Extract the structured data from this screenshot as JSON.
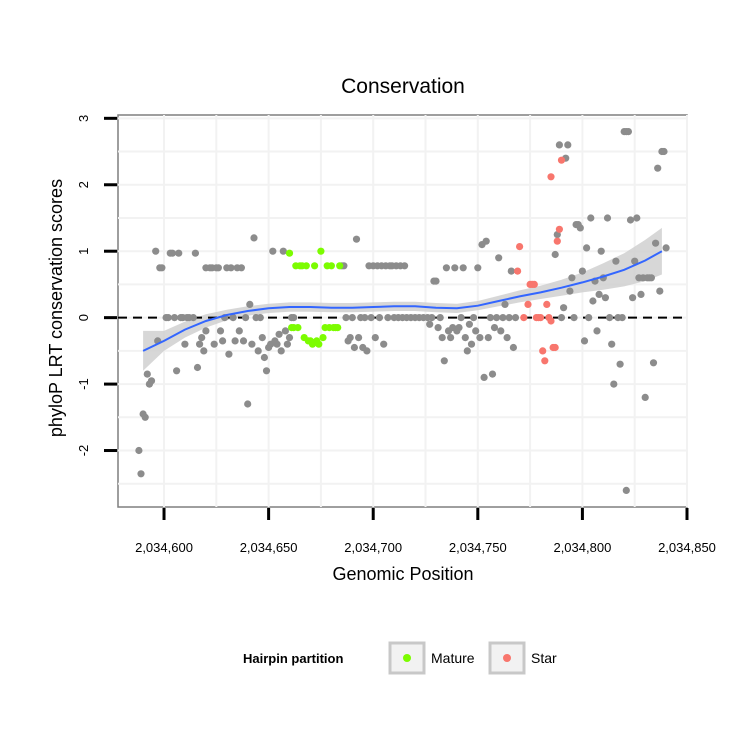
{
  "chart_data": {
    "type": "scatter",
    "title": "Conservation",
    "xlabel": "Genomic Position",
    "ylabel": "phyloP LRT conservation scores",
    "xlim": [
      2034578,
      2034850
    ],
    "ylim": [
      -2.85,
      3.05
    ],
    "x_ticks": [
      2034600,
      2034650,
      2034700,
      2034750,
      2034800,
      2034850
    ],
    "x_tick_labels": [
      "2,034,600",
      "2,034,650",
      "2,034,700",
      "2,034,750",
      "2,034,800",
      "2,034,850"
    ],
    "y_ticks": [
      -2,
      -1,
      0,
      1,
      2,
      3
    ],
    "y_tick_labels": [
      "-2",
      "-1",
      "0",
      "1",
      "2",
      "3"
    ],
    "reference_line": {
      "y": 0,
      "style": "dashed"
    },
    "legend": {
      "title": "Hairpin partition",
      "placement": "bottom",
      "entries": [
        {
          "label": "Mature",
          "color": "#7cfc00"
        },
        {
          "label": "Star",
          "color": "#f8766d"
        }
      ]
    },
    "colors": {
      "other": "#8c8c8c",
      "mature": "#7cfc00",
      "star": "#f8766d",
      "smooth": "#3366ff",
      "band": "#d0d0d0"
    },
    "smooth": {
      "x": [
        2034590,
        2034600,
        2034610,
        2034620,
        2034630,
        2034640,
        2034650,
        2034660,
        2034670,
        2034680,
        2034690,
        2034700,
        2034710,
        2034720,
        2034730,
        2034740,
        2034750,
        2034760,
        2034770,
        2034780,
        2034790,
        2034800,
        2034810,
        2034820,
        2034830,
        2034838
      ],
      "y": [
        -0.5,
        -0.35,
        -0.18,
        -0.05,
        0.04,
        0.1,
        0.14,
        0.16,
        0.16,
        0.15,
        0.15,
        0.16,
        0.17,
        0.17,
        0.15,
        0.14,
        0.18,
        0.25,
        0.32,
        0.38,
        0.45,
        0.53,
        0.62,
        0.72,
        0.86,
        1.0
      ],
      "lower": [
        -0.8,
        -0.5,
        -0.3,
        -0.15,
        -0.04,
        0.03,
        0.07,
        0.09,
        0.09,
        0.08,
        0.08,
        0.09,
        0.1,
        0.1,
        0.08,
        0.07,
        0.11,
        0.17,
        0.23,
        0.28,
        0.33,
        0.38,
        0.42,
        0.47,
        0.55,
        0.65
      ],
      "upper": [
        -0.2,
        -0.2,
        -0.06,
        0.05,
        0.12,
        0.17,
        0.21,
        0.23,
        0.23,
        0.22,
        0.22,
        0.23,
        0.24,
        0.24,
        0.22,
        0.21,
        0.25,
        0.33,
        0.41,
        0.48,
        0.57,
        0.68,
        0.82,
        0.97,
        1.17,
        1.35
      ]
    },
    "series": [
      {
        "name": "Other",
        "points": [
          [
            2034588,
            -2.0
          ],
          [
            2034589,
            -2.35
          ],
          [
            2034590,
            -1.45
          ],
          [
            2034591,
            -1.5
          ],
          [
            2034592,
            -0.85
          ],
          [
            2034593,
            -1.0
          ],
          [
            2034594,
            -0.95
          ],
          [
            2034596,
            1.0
          ],
          [
            2034597,
            -0.35
          ],
          [
            2034598,
            0.75
          ],
          [
            2034599,
            0.75
          ],
          [
            2034601,
            0.0
          ],
          [
            2034602,
            0.0
          ],
          [
            2034603,
            0.97
          ],
          [
            2034604,
            0.97
          ],
          [
            2034605,
            0.0
          ],
          [
            2034606,
            -0.8
          ],
          [
            2034607,
            0.97
          ],
          [
            2034608,
            0.0
          ],
          [
            2034609,
            0.0
          ],
          [
            2034610,
            -0.4
          ],
          [
            2034611,
            0.0
          ],
          [
            2034612,
            0.0
          ],
          [
            2034614,
            0.0
          ],
          [
            2034615,
            0.97
          ],
          [
            2034616,
            -0.75
          ],
          [
            2034617,
            -0.4
          ],
          [
            2034618,
            -0.3
          ],
          [
            2034619,
            -0.5
          ],
          [
            2034620,
            0.75
          ],
          [
            2034620,
            -0.2
          ],
          [
            2034622,
            0.75
          ],
          [
            2034623,
            0.75
          ],
          [
            2034624,
            -0.4
          ],
          [
            2034625,
            0.75
          ],
          [
            2034626,
            0.75
          ],
          [
            2034627,
            -0.2
          ],
          [
            2034628,
            -0.35
          ],
          [
            2034629,
            0.0
          ],
          [
            2034630,
            0.75
          ],
          [
            2034631,
            -0.55
          ],
          [
            2034632,
            0.75
          ],
          [
            2034633,
            0.0
          ],
          [
            2034634,
            -0.35
          ],
          [
            2034635,
            0.75
          ],
          [
            2034636,
            -0.2
          ],
          [
            2034637,
            0.75
          ],
          [
            2034638,
            -0.35
          ],
          [
            2034639,
            0.0
          ],
          [
            2034640,
            -1.3
          ],
          [
            2034641,
            0.2
          ],
          [
            2034642,
            -0.4
          ],
          [
            2034643,
            1.2
          ],
          [
            2034644,
            0.0
          ],
          [
            2034645,
            -0.5
          ],
          [
            2034646,
            0.0
          ],
          [
            2034647,
            -0.3
          ],
          [
            2034648,
            -0.6
          ],
          [
            2034649,
            -0.8
          ],
          [
            2034650,
            -0.45
          ],
          [
            2034651,
            -0.4
          ],
          [
            2034652,
            1.0
          ],
          [
            2034653,
            -0.35
          ],
          [
            2034654,
            -0.4
          ],
          [
            2034655,
            -0.25
          ],
          [
            2034656,
            -0.5
          ],
          [
            2034657,
            1.0
          ],
          [
            2034658,
            -0.2
          ],
          [
            2034659,
            -0.4
          ],
          [
            2034660,
            -0.3
          ],
          [
            2034661,
            0.0
          ],
          [
            2034662,
            0.0
          ],
          [
            2034685,
            0.78
          ],
          [
            2034686,
            0.78
          ],
          [
            2034687,
            0.0
          ],
          [
            2034688,
            -0.35
          ],
          [
            2034689,
            -0.3
          ],
          [
            2034690,
            0.0
          ],
          [
            2034691,
            -0.45
          ],
          [
            2034692,
            1.18
          ],
          [
            2034693,
            -0.3
          ],
          [
            2034694,
            0.0
          ],
          [
            2034695,
            -0.45
          ],
          [
            2034696,
            0.0
          ],
          [
            2034697,
            -0.5
          ],
          [
            2034698,
            0.78
          ],
          [
            2034699,
            0.0
          ],
          [
            2034700,
            0.78
          ],
          [
            2034701,
            -0.3
          ],
          [
            2034702,
            0.78
          ],
          [
            2034703,
            0.0
          ],
          [
            2034704,
            0.78
          ],
          [
            2034705,
            -0.4
          ],
          [
            2034706,
            0.78
          ],
          [
            2034707,
            0.0
          ],
          [
            2034708,
            0.78
          ],
          [
            2034709,
            0.78
          ],
          [
            2034710,
            0.0
          ],
          [
            2034711,
            0.78
          ],
          [
            2034712,
            0.0
          ],
          [
            2034713,
            0.78
          ],
          [
            2034714,
            0.0
          ],
          [
            2034715,
            0.78
          ],
          [
            2034716,
            0.0
          ],
          [
            2034718,
            0.0
          ],
          [
            2034720,
            0.0
          ],
          [
            2034722,
            0.0
          ],
          [
            2034724,
            0.0
          ],
          [
            2034726,
            0.0
          ],
          [
            2034727,
            -0.1
          ],
          [
            2034728,
            0.0
          ],
          [
            2034729,
            0.55
          ],
          [
            2034730,
            0.55
          ],
          [
            2034731,
            -0.15
          ],
          [
            2034732,
            0.0
          ],
          [
            2034733,
            -0.3
          ],
          [
            2034734,
            -0.65
          ],
          [
            2034735,
            0.75
          ],
          [
            2034736,
            -0.2
          ],
          [
            2034737,
            -0.3
          ],
          [
            2034738,
            -0.15
          ],
          [
            2034739,
            0.75
          ],
          [
            2034740,
            -0.2
          ],
          [
            2034741,
            -0.15
          ],
          [
            2034742,
            0.0
          ],
          [
            2034743,
            0.75
          ],
          [
            2034744,
            -0.3
          ],
          [
            2034745,
            -0.5
          ],
          [
            2034746,
            -0.1
          ],
          [
            2034747,
            -0.4
          ],
          [
            2034748,
            0.0
          ],
          [
            2034749,
            -0.2
          ],
          [
            2034750,
            0.75
          ],
          [
            2034751,
            -0.3
          ],
          [
            2034752,
            1.1
          ],
          [
            2034753,
            -0.9
          ],
          [
            2034754,
            1.15
          ],
          [
            2034755,
            -0.3
          ],
          [
            2034756,
            0.0
          ],
          [
            2034757,
            -0.85
          ],
          [
            2034758,
            -0.15
          ],
          [
            2034759,
            0.0
          ],
          [
            2034760,
            0.9
          ],
          [
            2034761,
            -0.2
          ],
          [
            2034762,
            0.0
          ],
          [
            2034763,
            0.2
          ],
          [
            2034764,
            -0.3
          ],
          [
            2034765,
            0.0
          ],
          [
            2034766,
            0.7
          ],
          [
            2034767,
            -0.45
          ],
          [
            2034768,
            0.0
          ],
          [
            2034787,
            0.95
          ],
          [
            2034788,
            1.25
          ],
          [
            2034789,
            2.6
          ],
          [
            2034790,
            0.0
          ],
          [
            2034791,
            0.15
          ],
          [
            2034792,
            2.4
          ],
          [
            2034793,
            2.6
          ],
          [
            2034794,
            0.4
          ],
          [
            2034795,
            0.6
          ],
          [
            2034796,
            0.0
          ],
          [
            2034797,
            1.4
          ],
          [
            2034798,
            1.4
          ],
          [
            2034799,
            1.35
          ],
          [
            2034800,
            0.7
          ],
          [
            2034801,
            -0.35
          ],
          [
            2034802,
            1.05
          ],
          [
            2034803,
            0.0
          ],
          [
            2034804,
            1.5
          ],
          [
            2034805,
            0.25
          ],
          [
            2034806,
            0.55
          ],
          [
            2034807,
            -0.2
          ],
          [
            2034808,
            0.35
          ],
          [
            2034809,
            1.0
          ],
          [
            2034810,
            0.6
          ],
          [
            2034811,
            0.3
          ],
          [
            2034812,
            1.5
          ],
          [
            2034813,
            0.0
          ],
          [
            2034814,
            -0.4
          ],
          [
            2034815,
            -1.0
          ],
          [
            2034816,
            0.85
          ],
          [
            2034817,
            0.0
          ],
          [
            2034818,
            -0.7
          ],
          [
            2034819,
            0.0
          ],
          [
            2034820,
            2.8
          ],
          [
            2034821,
            2.8
          ],
          [
            2034821,
            -2.6
          ],
          [
            2034822,
            2.8
          ],
          [
            2034823,
            1.47
          ],
          [
            2034824,
            0.3
          ],
          [
            2034825,
            0.85
          ],
          [
            2034826,
            1.5
          ],
          [
            2034827,
            0.6
          ],
          [
            2034828,
            0.35
          ],
          [
            2034829,
            0.6
          ],
          [
            2034830,
            -1.2
          ],
          [
            2034831,
            0.6
          ],
          [
            2034832,
            0.6
          ],
          [
            2034833,
            0.6
          ],
          [
            2034834,
            -0.68
          ],
          [
            2034835,
            1.12
          ],
          [
            2034836,
            2.25
          ],
          [
            2034837,
            0.4
          ],
          [
            2034838,
            2.5
          ],
          [
            2034839,
            2.5
          ],
          [
            2034840,
            1.05
          ]
        ]
      },
      {
        "name": "Mature",
        "points": [
          [
            2034660,
            0.97
          ],
          [
            2034661,
            -0.15
          ],
          [
            2034662,
            -0.15
          ],
          [
            2034663,
            0.78
          ],
          [
            2034664,
            -0.15
          ],
          [
            2034665,
            0.78
          ],
          [
            2034666,
            0.78
          ],
          [
            2034667,
            -0.3
          ],
          [
            2034668,
            0.78
          ],
          [
            2034669,
            -0.35
          ],
          [
            2034670,
            -0.35
          ],
          [
            2034671,
            -0.4
          ],
          [
            2034672,
            0.78
          ],
          [
            2034673,
            -0.35
          ],
          [
            2034674,
            -0.4
          ],
          [
            2034675,
            1.0
          ],
          [
            2034676,
            -0.3
          ],
          [
            2034677,
            -0.15
          ],
          [
            2034678,
            0.78
          ],
          [
            2034679,
            -0.15
          ],
          [
            2034680,
            0.78
          ],
          [
            2034681,
            -0.15
          ],
          [
            2034682,
            -0.15
          ],
          [
            2034683,
            -0.15
          ],
          [
            2034684,
            0.78
          ]
        ]
      },
      {
        "name": "Star",
        "points": [
          [
            2034769,
            0.7
          ],
          [
            2034770,
            1.07
          ],
          [
            2034772,
            0.0
          ],
          [
            2034774,
            0.2
          ],
          [
            2034775,
            0.5
          ],
          [
            2034776,
            0.5
          ],
          [
            2034777,
            0.5
          ],
          [
            2034778,
            0.0
          ],
          [
            2034779,
            0.0
          ],
          [
            2034780,
            0.0
          ],
          [
            2034781,
            -0.5
          ],
          [
            2034782,
            -0.65
          ],
          [
            2034783,
            0.2
          ],
          [
            2034784,
            0.0
          ],
          [
            2034785,
            2.12
          ],
          [
            2034786,
            -0.45
          ],
          [
            2034787,
            -0.45
          ],
          [
            2034788,
            1.15
          ],
          [
            2034789,
            1.33
          ],
          [
            2034790,
            2.37
          ],
          [
            2034785,
            -0.05
          ]
        ]
      }
    ]
  }
}
